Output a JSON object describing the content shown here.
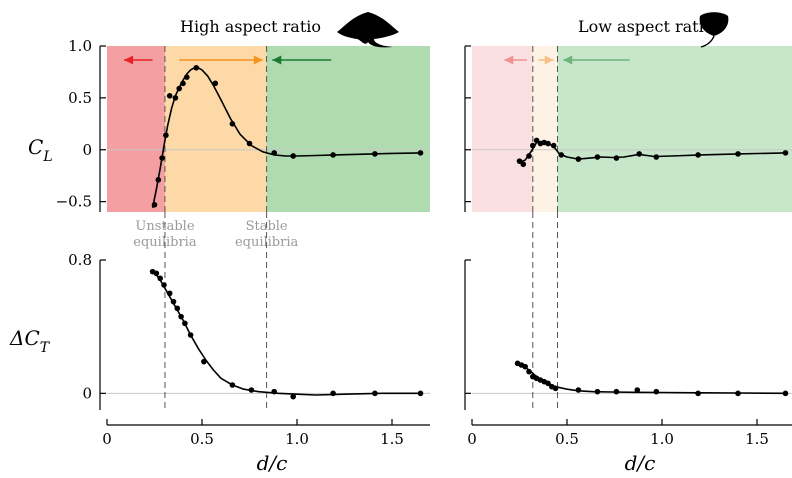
{
  "chart_data": [
    {
      "id": "high_CL",
      "type": "line",
      "title": "High aspect ratio",
      "title_icon": "manta-ray-icon",
      "ylabel_main": "C",
      "ylabel_sub": "L",
      "xlim": [
        0,
        1.7
      ],
      "ylim": [
        -0.6,
        1.0
      ],
      "yticks": [
        {
          "v": 1.0,
          "label": "1.0"
        },
        {
          "v": 0.5,
          "label": "0.5"
        },
        {
          "v": 0,
          "label": "0"
        },
        {
          "v": -0.5,
          "label": "−0.5"
        }
      ],
      "regions": [
        {
          "from": 0,
          "to": 0.305,
          "color": "#f4a0a2",
          "arrow": "left",
          "arrow_color": "#e8202a",
          "arrow_from": 0.24,
          "arrow_to": 0.09
        },
        {
          "from": 0.305,
          "to": 0.84,
          "color": "#fdd9a8",
          "arrow": "right",
          "arrow_color": "#f6921e",
          "arrow_from": 0.38,
          "arrow_to": 0.82
        },
        {
          "from": 0.84,
          "to": 1.7,
          "color": "#b0dbb1",
          "arrow": "left",
          "arrow_color": "#1a7a31",
          "arrow_from": 1.18,
          "arrow_to": 0.87
        }
      ],
      "points_x": [
        0.25,
        0.27,
        0.29,
        0.31,
        0.33,
        0.36,
        0.38,
        0.4,
        0.42,
        0.47,
        0.57,
        0.66,
        0.75,
        0.88,
        0.98,
        1.19,
        1.41,
        1.65
      ],
      "points_y": [
        -0.53,
        -0.29,
        -0.08,
        0.14,
        0.52,
        0.5,
        0.59,
        0.64,
        0.7,
        0.79,
        0.64,
        0.25,
        0.06,
        -0.03,
        -0.06,
        -0.05,
        -0.04,
        -0.03
      ],
      "curve_x": [
        0.24,
        0.26,
        0.28,
        0.3,
        0.32,
        0.34,
        0.36,
        0.38,
        0.4,
        0.42,
        0.44,
        0.46,
        0.48,
        0.5,
        0.53,
        0.56,
        0.6,
        0.65,
        0.7,
        0.76,
        0.82,
        0.88,
        0.94,
        1.0,
        1.1,
        1.2,
        1.3,
        1.4,
        1.5,
        1.65
      ],
      "curve_y": [
        -0.56,
        -0.38,
        -0.18,
        0.04,
        0.24,
        0.4,
        0.52,
        0.6,
        0.67,
        0.73,
        0.77,
        0.79,
        0.79,
        0.77,
        0.71,
        0.62,
        0.48,
        0.3,
        0.15,
        0.04,
        -0.02,
        -0.05,
        -0.06,
        -0.06,
        -0.055,
        -0.05,
        -0.045,
        -0.04,
        -0.035,
        -0.03
      ],
      "vlines": [
        0.305,
        0.84
      ],
      "annotations": [
        {
          "lines": [
            "Unstable",
            "equilibria"
          ],
          "x": 0.305
        },
        {
          "lines": [
            "Stable",
            "equilibria"
          ],
          "x": 0.84
        }
      ]
    },
    {
      "id": "low_CL",
      "type": "line",
      "title": "Low aspect ratio",
      "title_icon": "stingray-icon",
      "xlim": [
        0,
        1.7
      ],
      "ylim": [
        -0.6,
        1.0
      ],
      "regions": [
        {
          "from": 0,
          "to": 0.32,
          "color": "#fae0e0",
          "arrow": "left",
          "arrow_color": "#f2908f",
          "arrow_from": 0.29,
          "arrow_to": 0.17
        },
        {
          "from": 0.32,
          "to": 0.45,
          "color": "#fdf2e3",
          "arrow": "right",
          "arrow_color": "#f7bf85",
          "arrow_from": 0.35,
          "arrow_to": 0.43
        },
        {
          "from": 0.45,
          "to": 1.7,
          "color": "#c8e6ca",
          "arrow": "left",
          "arrow_color": "#6fb27c",
          "arrow_from": 0.83,
          "arrow_to": 0.48
        }
      ],
      "points_x": [
        0.25,
        0.27,
        0.3,
        0.32,
        0.34,
        0.36,
        0.38,
        0.4,
        0.43,
        0.47,
        0.56,
        0.66,
        0.76,
        0.88,
        0.97,
        1.19,
        1.4,
        1.65
      ],
      "points_y": [
        -0.11,
        -0.14,
        -0.06,
        0.04,
        0.09,
        0.06,
        0.07,
        0.06,
        0.04,
        -0.05,
        -0.09,
        -0.07,
        -0.08,
        -0.04,
        -0.07,
        -0.05,
        -0.04,
        -0.03
      ],
      "curve_x": [
        0.25,
        0.28,
        0.31,
        0.34,
        0.37,
        0.4,
        0.43,
        0.46,
        0.5,
        0.56,
        0.62,
        0.68,
        0.74,
        0.8,
        0.88,
        0.96,
        1.05,
        1.2,
        1.4,
        1.65
      ],
      "curve_y": [
        -0.12,
        -0.1,
        -0.02,
        0.07,
        0.08,
        0.06,
        0.03,
        -0.04,
        -0.07,
        -0.09,
        -0.08,
        -0.07,
        -0.075,
        -0.07,
        -0.045,
        -0.065,
        -0.06,
        -0.05,
        -0.04,
        -0.03
      ],
      "vlines": [
        0.32,
        0.45
      ]
    },
    {
      "id": "high_CT",
      "type": "line",
      "ylabel_main": "ΔC",
      "ylabel_sub": "T",
      "xlabel": "d/c",
      "xlim": [
        0,
        1.7
      ],
      "ylim": [
        -0.1,
        0.8
      ],
      "xticks": [
        {
          "v": 0,
          "label": "0"
        },
        {
          "v": 0.5,
          "label": "0.5"
        },
        {
          "v": 1.0,
          "label": "1.0"
        },
        {
          "v": 1.5,
          "label": "1.5"
        }
      ],
      "yticks": [
        {
          "v": 0.8,
          "label": "0.8"
        },
        {
          "v": 0,
          "label": "0"
        }
      ],
      "points_x": [
        0.24,
        0.26,
        0.28,
        0.3,
        0.33,
        0.35,
        0.37,
        0.39,
        0.41,
        0.44,
        0.51,
        0.66,
        0.76,
        0.88,
        0.98,
        1.19,
        1.41,
        1.65
      ],
      "points_y": [
        0.73,
        0.72,
        0.69,
        0.65,
        0.6,
        0.55,
        0.51,
        0.46,
        0.42,
        0.35,
        0.19,
        0.05,
        0.02,
        0.01,
        -0.02,
        0.0,
        0.0,
        0.0
      ],
      "curve_x": [
        0.24,
        0.28,
        0.32,
        0.36,
        0.4,
        0.44,
        0.48,
        0.52,
        0.56,
        0.6,
        0.66,
        0.72,
        0.8,
        0.9,
        1.0,
        1.1,
        1.25,
        1.45,
        1.65
      ],
      "curve_y": [
        0.74,
        0.68,
        0.6,
        0.52,
        0.44,
        0.35,
        0.27,
        0.2,
        0.14,
        0.09,
        0.05,
        0.025,
        0.01,
        0.0,
        -0.005,
        -0.01,
        -0.005,
        0.0,
        0.0
      ],
      "vlines": [
        0.305,
        0.84
      ]
    },
    {
      "id": "low_CT",
      "type": "line",
      "xlabel": "d/c",
      "xlim": [
        0,
        1.7
      ],
      "ylim": [
        -0.1,
        0.8
      ],
      "xticks": [
        {
          "v": 0,
          "label": "0"
        },
        {
          "v": 0.5,
          "label": "0.5"
        },
        {
          "v": 1.0,
          "label": "1.0"
        },
        {
          "v": 1.5,
          "label": "1.5"
        }
      ],
      "points_x": [
        0.24,
        0.26,
        0.28,
        0.3,
        0.32,
        0.34,
        0.36,
        0.38,
        0.4,
        0.42,
        0.44,
        0.56,
        0.66,
        0.76,
        0.87,
        0.97,
        1.19,
        1.4,
        1.65
      ],
      "points_y": [
        0.18,
        0.17,
        0.16,
        0.13,
        0.1,
        0.09,
        0.08,
        0.07,
        0.06,
        0.04,
        0.03,
        0.02,
        0.01,
        0.01,
        0.02,
        0.01,
        0.0,
        0.0,
        0.0
      ],
      "curve_x": [
        0.24,
        0.27,
        0.3,
        0.33,
        0.36,
        0.4,
        0.44,
        0.5,
        0.56,
        0.64,
        0.74,
        0.85,
        1.0,
        1.2,
        1.4,
        1.65
      ],
      "curve_y": [
        0.18,
        0.165,
        0.14,
        0.11,
        0.085,
        0.06,
        0.04,
        0.025,
        0.015,
        0.01,
        0.008,
        0.006,
        0.005,
        0.003,
        0.002,
        0.0
      ],
      "vlines": [
        0.32,
        0.45
      ]
    }
  ]
}
